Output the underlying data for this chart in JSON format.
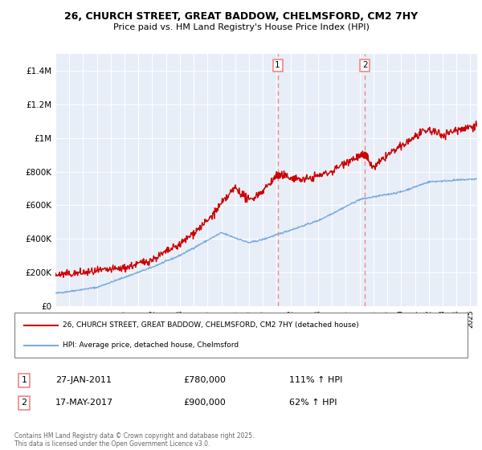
{
  "title_line1": "26, CHURCH STREET, GREAT BADDOW, CHELMSFORD, CM2 7HY",
  "title_line2": "Price paid vs. HM Land Registry's House Price Index (HPI)",
  "legend_label_red": "26, CHURCH STREET, GREAT BADDOW, CHELMSFORD, CM2 7HY (detached house)",
  "legend_label_blue": "HPI: Average price, detached house, Chelmsford",
  "annotation1_num": "1",
  "annotation1_date": "27-JAN-2011",
  "annotation1_price": "£780,000",
  "annotation1_hpi": "111% ↑ HPI",
  "annotation2_num": "2",
  "annotation2_date": "17-MAY-2017",
  "annotation2_price": "£900,000",
  "annotation2_hpi": "62% ↑ HPI",
  "footer": "Contains HM Land Registry data © Crown copyright and database right 2025.\nThis data is licensed under the Open Government Licence v3.0.",
  "vline1_x": 2011.07,
  "vline2_x": 2017.38,
  "sale1_x": 2011.07,
  "sale1_y": 780000,
  "sale2_x": 2017.38,
  "sale2_y": 900000,
  "red_color": "#cc0000",
  "blue_color": "#7aaadd",
  "vline_color": "#ee8888",
  "background_color": "#e8eef8",
  "ylim_min": 0,
  "ylim_max": 1500000,
  "xmin": 1995,
  "xmax": 2025.5,
  "yticks": [
    0,
    200000,
    400000,
    600000,
    800000,
    1000000,
    1200000,
    1400000
  ]
}
